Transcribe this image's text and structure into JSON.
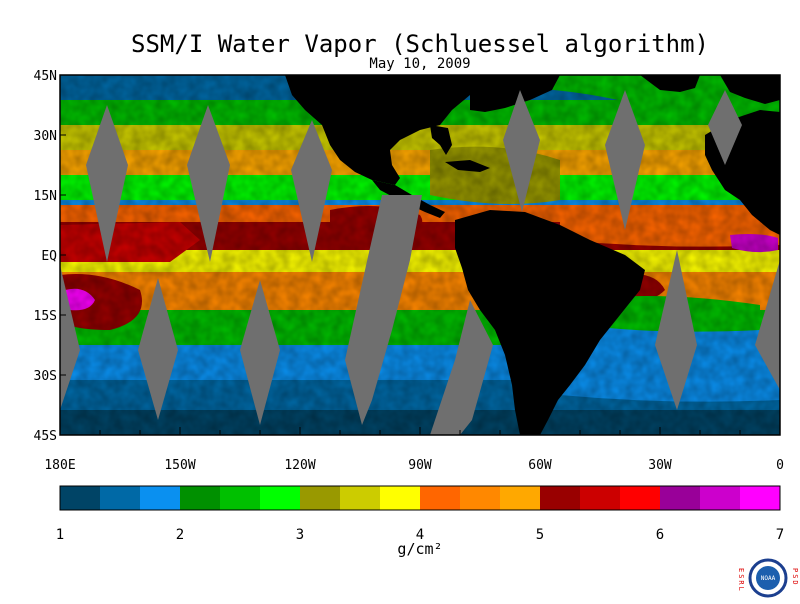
{
  "title": "SSM/I Water Vapor (Schluessel algorithm)",
  "date": "May 10, 2009",
  "map": {
    "lat_labels": [
      "45N",
      "30N",
      "15N",
      "EQ",
      "15S",
      "30S",
      "45S"
    ],
    "lon_labels": [
      "180E",
      "150W",
      "120W",
      "90W",
      "60W",
      "30W",
      "0"
    ],
    "colors": {
      "land": "#000000",
      "missing_swath": "#6f6f6f"
    }
  },
  "colorbar": {
    "tick_labels": [
      "1",
      "2",
      "3",
      "4",
      "5",
      "6",
      "7"
    ],
    "unit": "g/cm²",
    "colors": [
      "#004466",
      "#0069a6",
      "#0a90f0",
      "#009000",
      "#00c000",
      "#00ff00",
      "#999900",
      "#cccc00",
      "#ffff00",
      "#ff6600",
      "#ff8800",
      "#ffa800",
      "#990000",
      "#cc0000",
      "#ff0000",
      "#990099",
      "#cc00cc",
      "#ff00ff"
    ]
  },
  "logo": {
    "left_text": "ESRL",
    "right_text": "PSD",
    "badge": "NOAA"
  }
}
